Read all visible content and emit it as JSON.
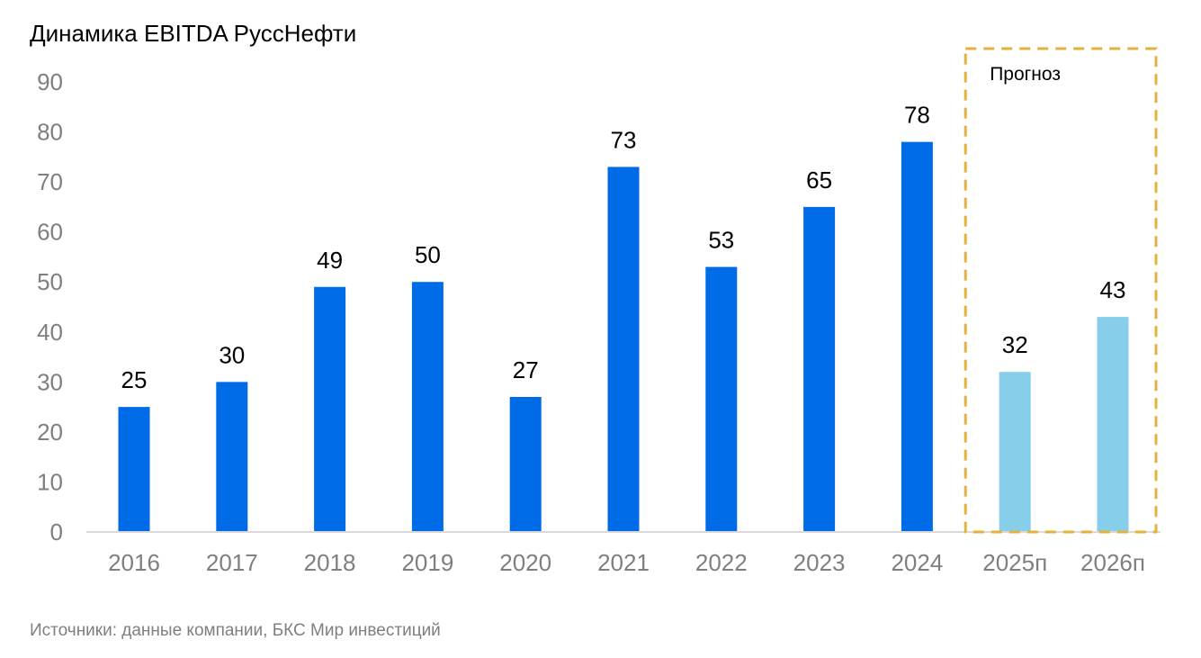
{
  "chart_data": {
    "type": "bar",
    "title": "Динамика EBITDA РуссНефти",
    "categories": [
      "2016",
      "2017",
      "2018",
      "2019",
      "2020",
      "2021",
      "2022",
      "2023",
      "2024",
      "2025п",
      "2026п"
    ],
    "values": [
      25,
      30,
      49,
      50,
      27,
      73,
      53,
      65,
      78,
      32,
      43
    ],
    "forecast_flags": [
      false,
      false,
      false,
      false,
      false,
      false,
      false,
      false,
      false,
      true,
      true
    ],
    "ylim": [
      0,
      90
    ],
    "yticks": [
      0,
      10,
      20,
      30,
      40,
      50,
      60,
      70,
      80,
      90
    ],
    "grid": false,
    "colors": {
      "actual": "#006be6",
      "forecast": "#87ceeb",
      "forecast_box": "#e3b13c",
      "axis": "#d9d9d9"
    },
    "forecast_box_label": "Прогноз",
    "source": "Источники: данные компании, БКС Мир инвестиций"
  }
}
